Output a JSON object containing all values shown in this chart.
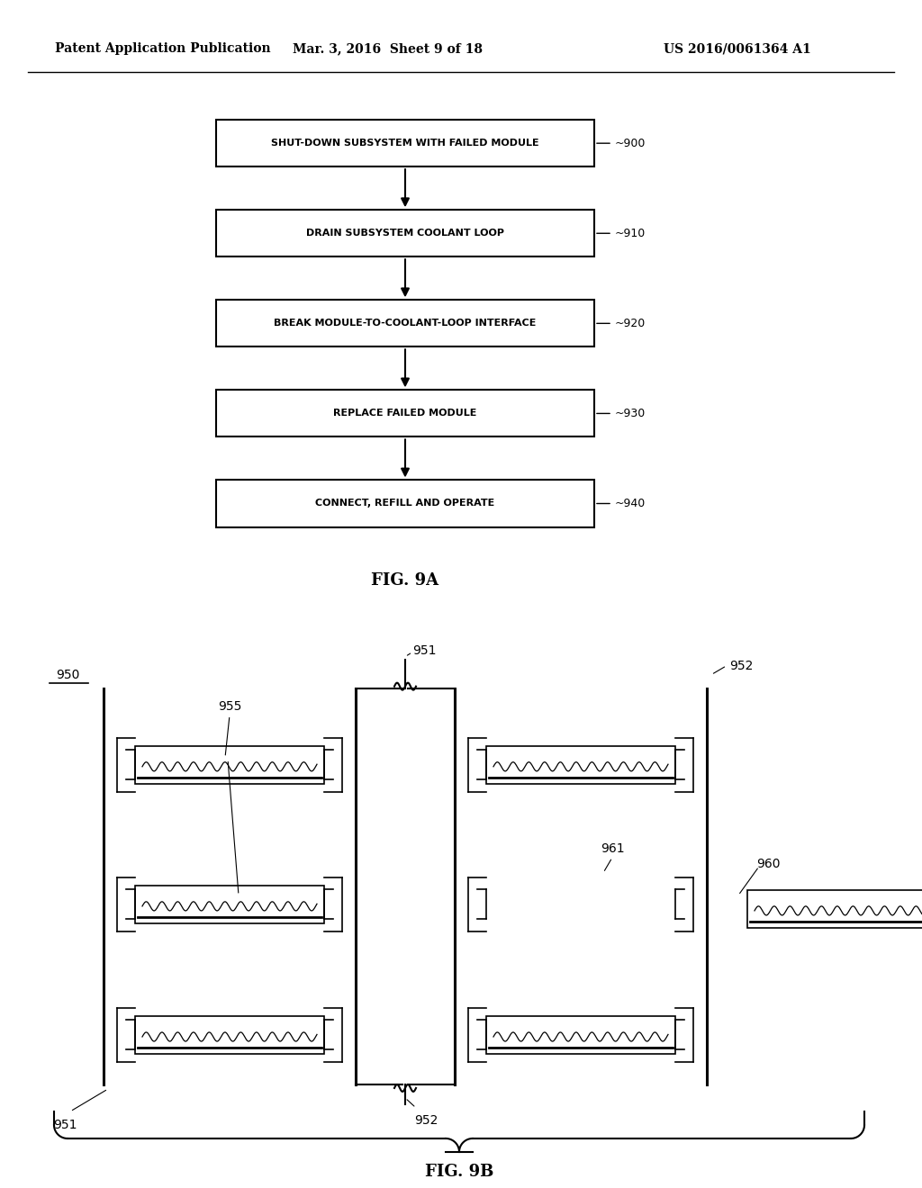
{
  "header_left": "Patent Application Publication",
  "header_mid": "Mar. 3, 2016  Sheet 9 of 18",
  "header_right": "US 2016/0061364 A1",
  "fig9a_title": "FIG. 9A",
  "fig9b_title": "FIG. 9B",
  "flowchart_boxes": [
    {
      "label": "SHUT-DOWN SUBSYSTEM WITH FAILED MODULE",
      "ref": "900"
    },
    {
      "label": "DRAIN SUBSYSTEM COOLANT LOOP",
      "ref": "910"
    },
    {
      "label": "BREAK MODULE-TO-COOLANT-LOOP INTERFACE",
      "ref": "920"
    },
    {
      "label": "REPLACE FAILED MODULE",
      "ref": "930"
    },
    {
      "label": "CONNECT, REFILL AND OPERATE",
      "ref": "940"
    }
  ],
  "bg_color": "#ffffff",
  "text_color": "#000000"
}
